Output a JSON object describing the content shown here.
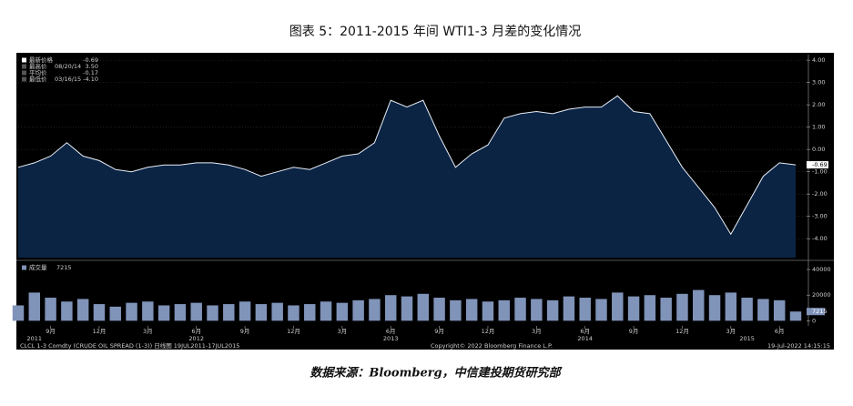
{
  "title": "图表 5：2011-2015 年间 WTI1-3 月差的变化情况",
  "source": "数据来源：Bloomberg，中信建投期货研究部",
  "footer": {
    "left": "CLCL 1-3 Comdty (CRUDE OIL SPREAD (1-3)) 日线图 19JUL2011-17JUL2015",
    "copyright": "Copyright© 2022 Bloomberg Finance L.P.",
    "timestamp": "19-Jul-2022 14:15:15"
  },
  "chart_data": [
    {
      "type": "area",
      "color": "#0b2444",
      "line_color": "#e8eef8",
      "grid": true,
      "legend": [
        {
          "label": "最新价格",
          "value": {
            "value": -0.69,
            "label": "-0.69"
          }
        },
        {
          "label": "最高价",
          "date": "08/20/14",
          "value": {
            "value": 3.5,
            "label": "3.50"
          }
        },
        {
          "label": "平均价",
          "value": {
            "value": -0.17,
            "label": "-0.17"
          }
        },
        {
          "label": "最低价",
          "date": "03/16/15",
          "value": {
            "value": -4.1,
            "label": "-4.10"
          }
        }
      ],
      "x": [
        "2011-07",
        "2011-08",
        "2011-09",
        "2011-10",
        "2011-11",
        "2011-12",
        "2012-01",
        "2012-02",
        "2012-03",
        "2012-04",
        "2012-05",
        "2012-06",
        "2012-07",
        "2012-08",
        "2012-09",
        "2012-10",
        "2012-11",
        "2012-12",
        "2013-01",
        "2013-02",
        "2013-03",
        "2013-04",
        "2013-05",
        "2013-06",
        "2013-07",
        "2013-08",
        "2013-09",
        "2013-10",
        "2013-11",
        "2013-12",
        "2014-01",
        "2014-02",
        "2014-03",
        "2014-04",
        "2014-05",
        "2014-06",
        "2014-07",
        "2014-08",
        "2014-09",
        "2014-10",
        "2014-11",
        "2014-12",
        "2015-01",
        "2015-02",
        "2015-03",
        "2015-04",
        "2015-05",
        "2015-06",
        "2015-07"
      ],
      "series": [
        {
          "name": "最新价格",
          "values": [
            -0.8,
            -0.6,
            -0.3,
            0.3,
            -0.3,
            -0.5,
            -0.9,
            -1.0,
            -0.8,
            -0.7,
            -0.7,
            -0.6,
            -0.6,
            -0.7,
            -0.9,
            -1.2,
            -1.0,
            -0.8,
            -0.9,
            -0.6,
            -0.3,
            -0.2,
            0.3,
            2.2,
            1.9,
            2.2,
            0.6,
            -0.8,
            -0.2,
            0.2,
            1.4,
            1.6,
            1.7,
            1.6,
            1.8,
            1.9,
            1.9,
            2.4,
            1.7,
            1.6,
            0.4,
            -0.8,
            -1.7,
            -2.6,
            -3.8,
            -2.5,
            -1.2,
            -0.6,
            -0.69
          ]
        }
      ],
      "xlim": [
        "2011-07",
        "2015-07"
      ],
      "ylim": [
        -4.85,
        4.25
      ],
      "yticks": [
        {
          "value": 4,
          "label": "4.00"
        },
        {
          "value": 3,
          "label": "3.00"
        },
        {
          "value": 2,
          "label": "2.00"
        },
        {
          "value": 1,
          "label": "1.00"
        },
        {
          "value": 0,
          "label": "0.00"
        },
        {
          "value": -1,
          "label": "-1.00"
        },
        {
          "value": -2,
          "label": "-2.00"
        },
        {
          "value": -3,
          "label": "-3.00"
        },
        {
          "value": -4,
          "label": "-4.00"
        }
      ]
    },
    {
      "type": "bar",
      "color": "#8093b8",
      "legend": {
        "label": "成交量",
        "value": 7215
      },
      "x": [
        "2011-07",
        "2011-08",
        "2011-09",
        "2011-10",
        "2011-11",
        "2011-12",
        "2012-01",
        "2012-02",
        "2012-03",
        "2012-04",
        "2012-05",
        "2012-06",
        "2012-07",
        "2012-08",
        "2012-09",
        "2012-10",
        "2012-11",
        "2012-12",
        "2013-01",
        "2013-02",
        "2013-03",
        "2013-04",
        "2013-05",
        "2013-06",
        "2013-07",
        "2013-08",
        "2013-09",
        "2013-10",
        "2013-11",
        "2013-12",
        "2014-01",
        "2014-02",
        "2014-03",
        "2014-04",
        "2014-05",
        "2014-06",
        "2014-07",
        "2014-08",
        "2014-09",
        "2014-10",
        "2014-11",
        "2014-12",
        "2015-01",
        "2015-02",
        "2015-03",
        "2015-04",
        "2015-05",
        "2015-06",
        "2015-07"
      ],
      "series": [
        {
          "name": "成交量",
          "values": [
            12000,
            22000,
            18000,
            15000,
            17000,
            13000,
            11000,
            14000,
            15000,
            12000,
            13000,
            14000,
            12000,
            13000,
            15000,
            13000,
            14000,
            12000,
            13000,
            15000,
            14000,
            16000,
            17000,
            20000,
            19000,
            21000,
            18000,
            16000,
            17000,
            15000,
            16000,
            18000,
            17000,
            16000,
            19000,
            18000,
            17000,
            22000,
            19000,
            20000,
            18000,
            21000,
            24000,
            20000,
            22000,
            18000,
            17000,
            16000,
            7215
          ]
        }
      ],
      "xlim": [
        "2011-07",
        "2015-07"
      ],
      "ylim": [
        -4000,
        45000
      ],
      "yticks": [
        40000,
        20000,
        0
      ],
      "xticks": [
        {
          "value": "2011-09",
          "label": "9月"
        },
        {
          "value": "2011-12",
          "label": "12月"
        },
        {
          "value": "2012-03",
          "label": "3月"
        },
        {
          "value": "2012-06",
          "label": "6月"
        },
        {
          "value": "2012-09",
          "label": "9月"
        },
        {
          "value": "2012-12",
          "label": "12月"
        },
        {
          "value": "2013-03",
          "label": "3月"
        },
        {
          "value": "2013-06",
          "label": "6月"
        },
        {
          "value": "2013-09",
          "label": "9月"
        },
        {
          "value": "2013-12",
          "label": "12月"
        },
        {
          "value": "2014-03",
          "label": "3月"
        },
        {
          "value": "2014-06",
          "label": "6月"
        },
        {
          "value": "2014-09",
          "label": "9月"
        },
        {
          "value": "2014-12",
          "label": "12月"
        },
        {
          "value": "2015-03",
          "label": "3月"
        },
        {
          "value": "2015-06",
          "label": "6月"
        }
      ],
      "year_labels": [
        {
          "value": "2011-08",
          "label": "2011"
        },
        {
          "value": "2012-06",
          "label": "2012"
        },
        {
          "value": "2013-06",
          "label": "2013"
        },
        {
          "value": "2014-06",
          "label": "2014"
        },
        {
          "value": "2015-04",
          "label": "2015"
        }
      ]
    }
  ]
}
